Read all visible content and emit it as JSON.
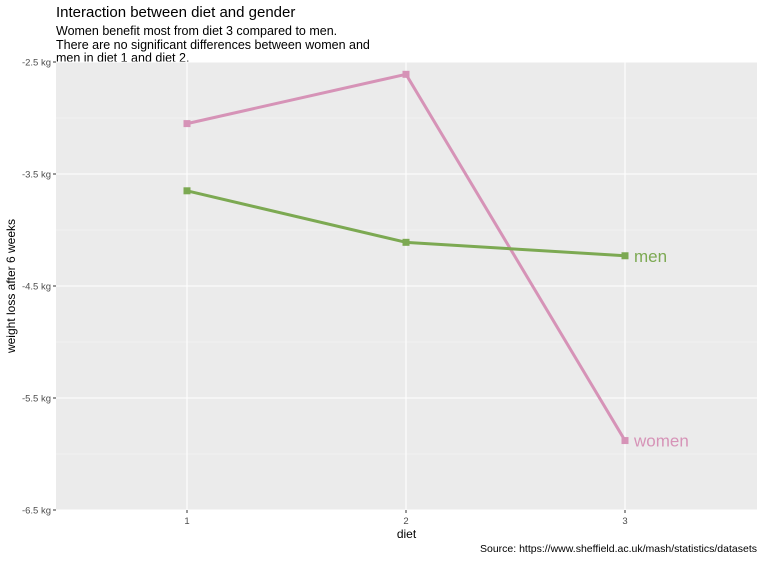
{
  "title": "Interaction between diet and gender",
  "subtitle": [
    "Women benefit most from diet 3 compared to men.",
    "There are no significant differences between women and",
    "men in diet 1 and diet 2."
  ],
  "caption": "Source: https://www.sheffield.ac.uk/mash/statistics/datasets",
  "chart_data": {
    "type": "line",
    "title": "Interaction between diet and gender",
    "xlabel": "diet",
    "ylabel": "weight loss after 6 weeks",
    "categories": [
      "1",
      "2",
      "3"
    ],
    "y_ticks": [
      -2.5,
      -3.5,
      -4.5,
      -5.5,
      -6.5
    ],
    "y_tick_labels": [
      "-2.5 kg",
      "-3.5 kg",
      "-4.5 kg",
      "-5.5 kg",
      "-6.5 kg"
    ],
    "ylim": [
      -6.5,
      -2.5
    ],
    "grid": true,
    "background": "#ebebeb",
    "legend": "direct labels at line ends",
    "series": [
      {
        "name": "women",
        "color": "#d693b7",
        "values": [
          -3.05,
          -2.61,
          -5.88
        ]
      },
      {
        "name": "men",
        "color": "#7ca952",
        "values": [
          -3.65,
          -4.11,
          -4.23
        ]
      }
    ]
  }
}
